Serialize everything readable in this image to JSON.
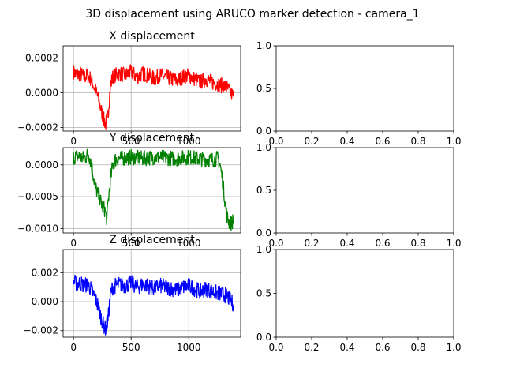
{
  "figure": {
    "suptitle": "3D displacement using ARUCO marker detection - camera_1"
  },
  "chart_data": [
    {
      "type": "line",
      "title": "X displacement",
      "color": "#ff0000",
      "grid": true,
      "xlim": [
        -90,
        1450
      ],
      "ylim": [
        -0.00022,
        0.00027
      ],
      "xticks": [
        0,
        500,
        1000
      ],
      "xtick_labels": [
        "0",
        "500",
        "1000"
      ],
      "yticks": [
        -0.0002,
        0.0,
        0.0002
      ],
      "ytick_labels": [
        "−0.0002",
        "0.0000",
        "0.0002"
      ],
      "series": [
        {
          "x": [
            0,
            30,
            60,
            90,
            120,
            150,
            180,
            210,
            240,
            260,
            280,
            300,
            320,
            340,
            360,
            400,
            450,
            500,
            550,
            600,
            650,
            700,
            750,
            800,
            850,
            900,
            950,
            1000,
            1050,
            1100,
            1150,
            1200,
            1250,
            1300,
            1330,
            1360,
            1390
          ],
          "y": [
            0.00012,
            0.0001,
            0.00011,
            9e-05,
            0.0001,
            8e-05,
            3e-05,
            -2e-05,
            -0.0001,
            -0.00015,
            -0.00018,
            -0.00012,
            4e-05,
            9e-05,
            0.0001,
            0.00011,
            0.0001,
            0.00012,
            9e-05,
            0.00011,
            0.0001,
            8e-05,
            0.0001,
            9e-05,
            8e-05,
            7e-05,
            9e-05,
            0.0001,
            8e-05,
            6e-05,
            8e-05,
            6e-05,
            5e-05,
            4e-05,
            3e-05,
            0.0,
            -2e-05
          ]
        }
      ]
    },
    {
      "type": "line",
      "title": "Y displacement",
      "color": "#008000",
      "grid": true,
      "xlim": [
        -90,
        1450
      ],
      "ylim": [
        -0.00107,
        0.00027
      ],
      "xticks": [
        0,
        500,
        1000
      ],
      "xtick_labels": [
        "0",
        "500",
        "1000"
      ],
      "yticks": [
        0.0,
        -0.0005,
        -0.001
      ],
      "ytick_labels": [
        "0.0000",
        "−0.0005",
        "−0.0010"
      ],
      "series": [
        {
          "x": [
            0,
            40,
            80,
            110,
            130,
            150,
            170,
            190,
            210,
            230,
            250,
            270,
            290,
            300,
            320,
            340,
            360,
            400,
            500,
            600,
            700,
            800,
            900,
            1000,
            1100,
            1200,
            1250,
            1270,
            1290,
            1310,
            1330,
            1350,
            1370,
            1390
          ],
          "y": [
            0.00012,
            0.00014,
            0.0001,
            0.00013,
            0.00018,
            5e-05,
            -0.00015,
            -0.00035,
            -0.00045,
            -0.00055,
            -0.00065,
            -0.0007,
            -0.00085,
            -0.0006,
            -0.00025,
            0.0,
            8e-05,
            0.0001,
            0.00012,
            0.0001,
            0.00012,
            0.00011,
            0.0001,
            0.00012,
            9e-05,
            8e-05,
            0.0001,
            2e-05,
            -0.0002,
            -0.0005,
            -0.0008,
            -0.0009,
            -0.00092,
            -0.00085
          ]
        }
      ]
    },
    {
      "type": "line",
      "title": "Z displacement",
      "color": "#0000ff",
      "grid": true,
      "xlim": [
        -90,
        1450
      ],
      "ylim": [
        -0.00245,
        0.0036
      ],
      "xticks": [
        0,
        500,
        1000
      ],
      "xtick_labels": [
        "0",
        "500",
        "1000"
      ],
      "yticks": [
        -0.002,
        0.0,
        0.002
      ],
      "ytick_labels": [
        "−0.002",
        "0.000",
        "0.002"
      ],
      "series": [
        {
          "x": [
            0,
            30,
            60,
            90,
            120,
            150,
            180,
            210,
            240,
            260,
            280,
            300,
            320,
            340,
            360,
            400,
            450,
            500,
            550,
            600,
            650,
            700,
            750,
            800,
            850,
            900,
            950,
            1000,
            1050,
            1100,
            1150,
            1200,
            1250,
            1300,
            1330,
            1360,
            1390
          ],
          "y": [
            0.0014,
            0.0012,
            0.0013,
            0.0011,
            0.0012,
            0.0009,
            0.0004,
            -0.0002,
            -0.0011,
            -0.0016,
            -0.0019,
            -0.0012,
            0.0005,
            0.001,
            0.0011,
            0.0012,
            0.0011,
            0.0013,
            0.001,
            0.0012,
            0.0011,
            0.0009,
            0.0011,
            0.001,
            0.0009,
            0.0008,
            0.001,
            0.0011,
            0.0009,
            0.0007,
            0.0009,
            0.0007,
            0.0006,
            0.0005,
            0.0004,
            0.0001,
            -0.0002
          ]
        }
      ]
    },
    {
      "type": "line",
      "title": "",
      "grid": false,
      "xlim": [
        0,
        1
      ],
      "ylim": [
        0,
        1
      ],
      "xticks": [
        0,
        0.2,
        0.4,
        0.6,
        0.8,
        1.0
      ],
      "xtick_labels": [
        "0.0",
        "0.2",
        "0.4",
        "0.6",
        "0.8",
        "1.0"
      ],
      "yticks": [
        0,
        0.5,
        1.0
      ],
      "ytick_labels": [
        "0.0",
        "0.5",
        "1.0"
      ],
      "series": []
    },
    {
      "type": "line",
      "title": "",
      "grid": false,
      "xlim": [
        0,
        1
      ],
      "ylim": [
        0,
        1
      ],
      "xticks": [
        0,
        0.2,
        0.4,
        0.6,
        0.8,
        1.0
      ],
      "xtick_labels": [
        "0.0",
        "0.2",
        "0.4",
        "0.6",
        "0.8",
        "1.0"
      ],
      "yticks": [
        0,
        0.5,
        1.0
      ],
      "ytick_labels": [
        "0.0",
        "0.5",
        "1.0"
      ],
      "series": []
    },
    {
      "type": "line",
      "title": "",
      "grid": false,
      "xlim": [
        0,
        1
      ],
      "ylim": [
        0,
        1
      ],
      "xticks": [
        0,
        0.2,
        0.4,
        0.6,
        0.8,
        1.0
      ],
      "xtick_labels": [
        "0.0",
        "0.2",
        "0.4",
        "0.6",
        "0.8",
        "1.0"
      ],
      "yticks": [
        0,
        0.5,
        1.0
      ],
      "ytick_labels": [
        "0.0",
        "0.5",
        "1.0"
      ],
      "series": []
    }
  ]
}
